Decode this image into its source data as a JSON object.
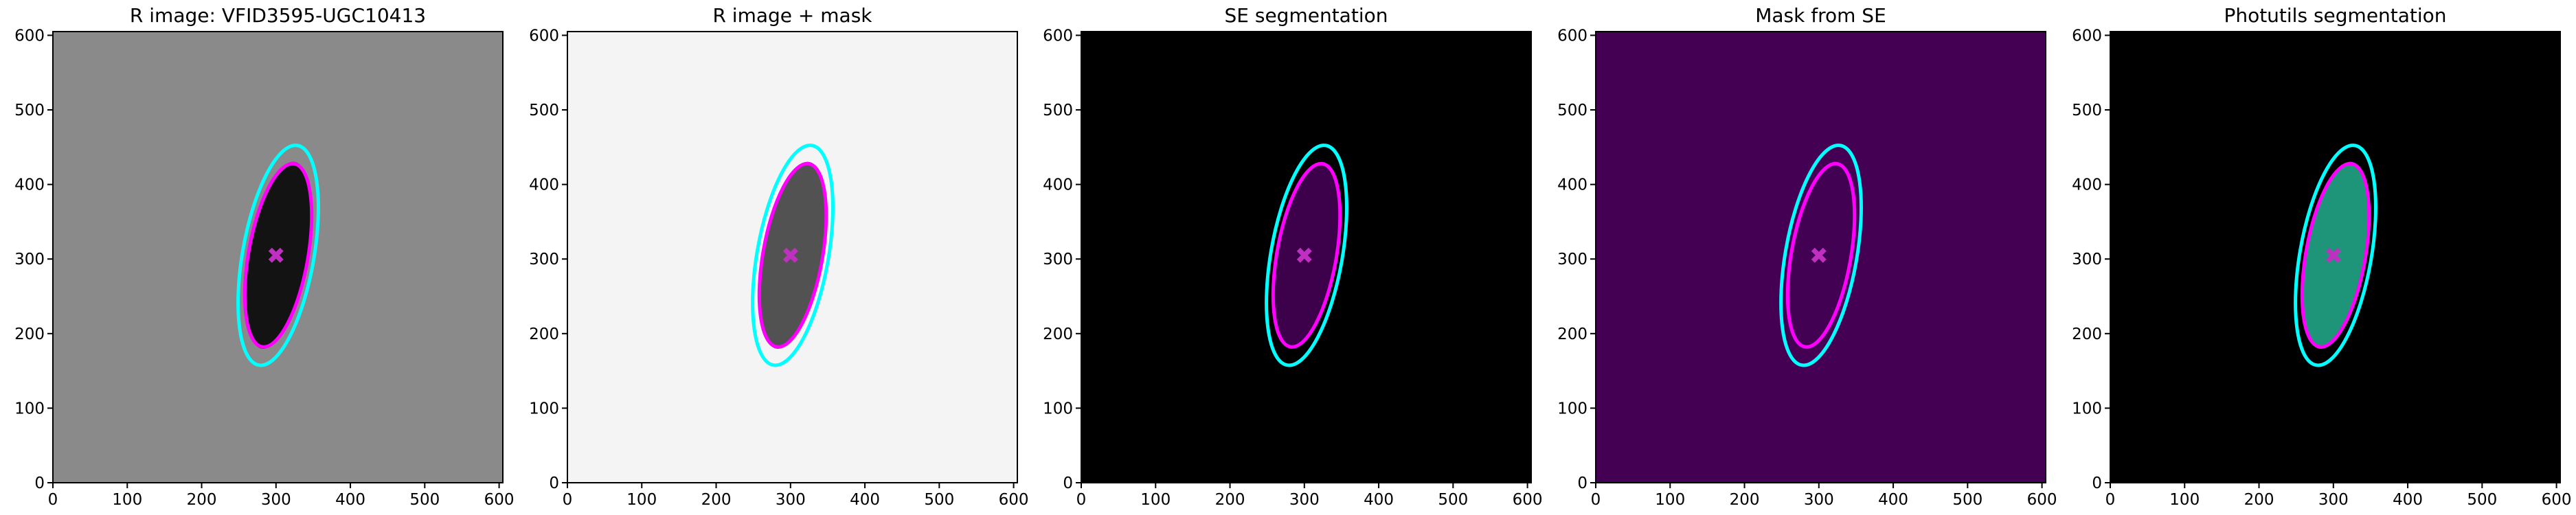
{
  "chart_data": [
    {
      "type": "image",
      "title": "R image: VFID3595-UGC10413",
      "background": "#8a8a8a",
      "blob": "#050505",
      "xlim": [
        0,
        605
      ],
      "ylim": [
        0,
        605
      ],
      "xticks": [
        0,
        100,
        200,
        300,
        400,
        500,
        600
      ],
      "yticks": [
        0,
        100,
        200,
        300,
        400,
        500,
        600
      ],
      "ellipses": [
        {
          "center": [
            303,
            305
          ],
          "a": 150,
          "b": 48,
          "angle": 80,
          "color": "#00ffff"
        },
        {
          "center": [
            303,
            305
          ],
          "a": 125,
          "b": 40,
          "angle": 80,
          "color": "#ff00ff"
        }
      ],
      "marker": {
        "x": 300,
        "y": 305,
        "color": "#c030c0"
      }
    },
    {
      "type": "image",
      "title": "R image + mask",
      "background": "#f4f4f4",
      "blob": "#404040",
      "xlim": [
        0,
        605
      ],
      "ylim": [
        0,
        605
      ],
      "xticks": [
        0,
        100,
        200,
        300,
        400,
        500,
        600
      ],
      "yticks": [
        0,
        100,
        200,
        300,
        400,
        500,
        600
      ],
      "ellipses": [
        {
          "center": [
            303,
            305
          ],
          "a": 150,
          "b": 48,
          "angle": 80,
          "color": "#00ffff"
        },
        {
          "center": [
            303,
            305
          ],
          "a": 125,
          "b": 40,
          "angle": 80,
          "color": "#ff00ff"
        }
      ],
      "marker": {
        "x": 300,
        "y": 305,
        "color": "#c030c0"
      }
    },
    {
      "type": "image",
      "title": "SE segmentation",
      "background": "#000000",
      "blob": "#440154",
      "xlim": [
        0,
        605
      ],
      "ylim": [
        0,
        605
      ],
      "xticks": [
        0,
        100,
        200,
        300,
        400,
        500,
        600
      ],
      "yticks": [
        0,
        100,
        200,
        300,
        400,
        500,
        600
      ],
      "ellipses": [
        {
          "center": [
            303,
            305
          ],
          "a": 150,
          "b": 48,
          "angle": 80,
          "color": "#00ffff"
        },
        {
          "center": [
            303,
            305
          ],
          "a": 125,
          "b": 40,
          "angle": 80,
          "color": "#ff00ff"
        }
      ],
      "marker": {
        "x": 300,
        "y": 305,
        "color": "#c030c0"
      }
    },
    {
      "type": "image",
      "title": "Mask from SE",
      "background": "#440154",
      "blob": "#440154",
      "xlim": [
        0,
        605
      ],
      "ylim": [
        0,
        605
      ],
      "xticks": [
        0,
        100,
        200,
        300,
        400,
        500,
        600
      ],
      "yticks": [
        0,
        100,
        200,
        300,
        400,
        500,
        600
      ],
      "ellipses": [
        {
          "center": [
            303,
            305
          ],
          "a": 150,
          "b": 48,
          "angle": 80,
          "color": "#00ffff"
        },
        {
          "center": [
            303,
            305
          ],
          "a": 125,
          "b": 40,
          "angle": 80,
          "color": "#ff00ff"
        }
      ],
      "marker": {
        "x": 300,
        "y": 305,
        "color": "#c030c0"
      }
    },
    {
      "type": "image",
      "title": "Photutils segmentation",
      "background": "#000000",
      "blob": "#21a585",
      "xlim": [
        0,
        605
      ],
      "ylim": [
        0,
        605
      ],
      "xticks": [
        0,
        100,
        200,
        300,
        400,
        500,
        600
      ],
      "yticks": [
        0,
        100,
        200,
        300,
        400,
        500,
        600
      ],
      "ellipses": [
        {
          "center": [
            303,
            305
          ],
          "a": 150,
          "b": 48,
          "angle": 80,
          "color": "#00ffff"
        },
        {
          "center": [
            303,
            305
          ],
          "a": 125,
          "b": 40,
          "angle": 80,
          "color": "#ff00ff"
        }
      ],
      "marker": {
        "x": 300,
        "y": 305,
        "color": "#c030c0"
      }
    }
  ]
}
